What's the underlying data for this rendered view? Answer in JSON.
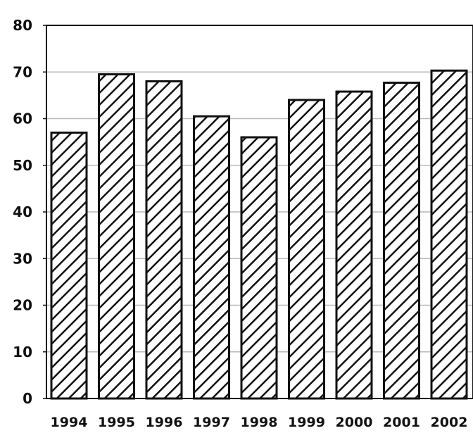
{
  "chart_data": {
    "type": "bar",
    "categories": [
      "1994",
      "1995",
      "1996",
      "1997",
      "1998",
      "1999",
      "2000",
      "2001",
      "2002"
    ],
    "values": [
      57,
      69.5,
      68,
      60.5,
      56,
      64,
      65.8,
      67.7,
      70.3
    ],
    "ylim": [
      0,
      80
    ],
    "yticks": [
      "0",
      "10",
      "20",
      "30",
      "40",
      "50",
      "60",
      "70",
      "80"
    ],
    "grid": true,
    "legend": "none",
    "colors": {
      "bar_stroke": "#111111",
      "hatch": "#111111",
      "background": "#ffffff",
      "grid": "#b8b8b8",
      "axis": "#111111"
    }
  }
}
